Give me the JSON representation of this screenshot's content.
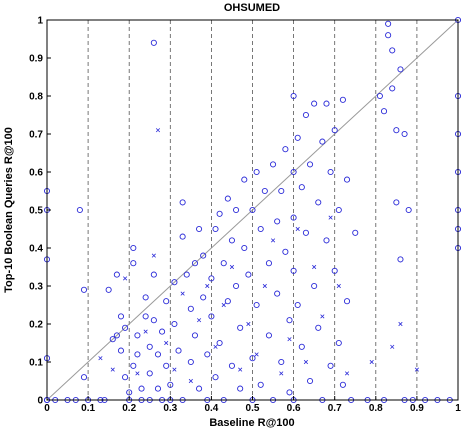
{
  "chart_data": {
    "type": "scatter",
    "title": "OHSUMED",
    "xlabel": "Baseline R@100",
    "ylabel": "Top-10 Boolean Queries R@100",
    "xlim": [
      0,
      1
    ],
    "ylim": [
      0,
      1
    ],
    "x_ticks": [
      "0",
      "0.1",
      "0.2",
      "0.3",
      "0.4",
      "0.5",
      "0.6",
      "0.7",
      "0.8",
      "0.9",
      "1"
    ],
    "y_ticks": [
      "0",
      "0.1",
      "0.2",
      "0.3",
      "0.4",
      "0.5",
      "0.6",
      "0.7",
      "0.8",
      "0.9",
      "1"
    ],
    "vertical_dashed_lines_at": [
      0.1,
      0.2,
      0.3,
      0.4,
      0.5,
      0.6,
      0.7,
      0.8,
      0.9
    ],
    "reference_line": {
      "type": "diagonal",
      "from": [
        0,
        0
      ],
      "to": [
        1,
        1
      ]
    },
    "marker_color": "#2b2bd8",
    "axis_color": "#000000",
    "reference_line_color": "#9a9a9a",
    "series": [
      {
        "marker": "circle",
        "points": [
          [
            0.0,
            0.0
          ],
          [
            0.0,
            0.5
          ],
          [
            0.0,
            0.55
          ],
          [
            0.0,
            0.37
          ],
          [
            0.0,
            0.11
          ],
          [
            0.0,
            0.0
          ],
          [
            0.02,
            0.0
          ],
          [
            0.05,
            0.0
          ],
          [
            0.07,
            0.0
          ],
          [
            0.08,
            0.5
          ],
          [
            0.09,
            0.06
          ],
          [
            0.09,
            0.29
          ],
          [
            0.1,
            0.0
          ],
          [
            0.13,
            0.0
          ],
          [
            0.14,
            0.0
          ],
          [
            0.15,
            0.29
          ],
          [
            0.16,
            0.16
          ],
          [
            0.17,
            0.17
          ],
          [
            0.17,
            0.33
          ],
          [
            0.18,
            0.22
          ],
          [
            0.18,
            0.13
          ],
          [
            0.19,
            0.19
          ],
          [
            0.19,
            0.06
          ],
          [
            0.2,
            0.02
          ],
          [
            0.2,
            0.0
          ],
          [
            0.21,
            0.4
          ],
          [
            0.21,
            0.36
          ],
          [
            0.21,
            0.09
          ],
          [
            0.22,
            0.17
          ],
          [
            0.22,
            0.12
          ],
          [
            0.23,
            0.0
          ],
          [
            0.23,
            0.03
          ],
          [
            0.24,
            0.22
          ],
          [
            0.24,
            0.27
          ],
          [
            0.25,
            0.07
          ],
          [
            0.25,
            0.14
          ],
          [
            0.25,
            0.0
          ],
          [
            0.26,
            0.94
          ],
          [
            0.26,
            0.33
          ],
          [
            0.26,
            0.21
          ],
          [
            0.27,
            0.12
          ],
          [
            0.27,
            0.03
          ],
          [
            0.28,
            0.0
          ],
          [
            0.28,
            0.18
          ],
          [
            0.29,
            0.26
          ],
          [
            0.29,
            0.09
          ],
          [
            0.3,
            0.04
          ],
          [
            0.3,
            0.0
          ],
          [
            0.31,
            0.31
          ],
          [
            0.31,
            0.2
          ],
          [
            0.32,
            0.13
          ],
          [
            0.33,
            0.52
          ],
          [
            0.33,
            0.43
          ],
          [
            0.33,
            0.0
          ],
          [
            0.34,
            0.33
          ],
          [
            0.35,
            0.24
          ],
          [
            0.35,
            0.1
          ],
          [
            0.36,
            0.17
          ],
          [
            0.36,
            0.36
          ],
          [
            0.37,
            0.45
          ],
          [
            0.37,
            0.03
          ],
          [
            0.38,
            0.27
          ],
          [
            0.38,
            0.38
          ],
          [
            0.39,
            0.0
          ],
          [
            0.39,
            0.12
          ],
          [
            0.4,
            0.32
          ],
          [
            0.4,
            0.22
          ],
          [
            0.41,
            0.45
          ],
          [
            0.41,
            0.06
          ],
          [
            0.42,
            0.49
          ],
          [
            0.42,
            0.15
          ],
          [
            0.43,
            0.36
          ],
          [
            0.43,
            0.0
          ],
          [
            0.44,
            0.53
          ],
          [
            0.44,
            0.26
          ],
          [
            0.45,
            0.42
          ],
          [
            0.45,
            0.09
          ],
          [
            0.46,
            0.5
          ],
          [
            0.46,
            0.3
          ],
          [
            0.47,
            0.19
          ],
          [
            0.47,
            0.03
          ],
          [
            0.48,
            0.4
          ],
          [
            0.48,
            0.58
          ],
          [
            0.49,
            0.33
          ],
          [
            0.5,
            0.5
          ],
          [
            0.5,
            0.11
          ],
          [
            0.5,
            0.0
          ],
          [
            0.51,
            0.6
          ],
          [
            0.51,
            0.25
          ],
          [
            0.52,
            0.45
          ],
          [
            0.52,
            0.04
          ],
          [
            0.53,
            0.55
          ],
          [
            0.54,
            0.36
          ],
          [
            0.54,
            0.17
          ],
          [
            0.55,
            0.62
          ],
          [
            0.55,
            0.0
          ],
          [
            0.56,
            0.47
          ],
          [
            0.56,
            0.28
          ],
          [
            0.57,
            0.55
          ],
          [
            0.57,
            0.1
          ],
          [
            0.58,
            0.66
          ],
          [
            0.58,
            0.39
          ],
          [
            0.59,
            0.21
          ],
          [
            0.59,
            0.02
          ],
          [
            0.6,
            0.8
          ],
          [
            0.6,
            0.6
          ],
          [
            0.6,
            0.48
          ],
          [
            0.6,
            0.34
          ],
          [
            0.6,
            0.0
          ],
          [
            0.61,
            0.25
          ],
          [
            0.61,
            0.69
          ],
          [
            0.62,
            0.56
          ],
          [
            0.62,
            0.14
          ],
          [
            0.63,
            0.75
          ],
          [
            0.63,
            0.44
          ],
          [
            0.64,
            0.05
          ],
          [
            0.64,
            0.62
          ],
          [
            0.65,
            0.3
          ],
          [
            0.65,
            0.78
          ],
          [
            0.66,
            0.52
          ],
          [
            0.66,
            0.19
          ],
          [
            0.67,
            0.68
          ],
          [
            0.67,
            0.0
          ],
          [
            0.68,
            0.42
          ],
          [
            0.68,
            0.78
          ],
          [
            0.69,
            0.09
          ],
          [
            0.69,
            0.6
          ],
          [
            0.7,
            0.34
          ],
          [
            0.7,
            0.71
          ],
          [
            0.71,
            0.15
          ],
          [
            0.71,
            0.5
          ],
          [
            0.72,
            0.79
          ],
          [
            0.72,
            0.04
          ],
          [
            0.73,
            0.58
          ],
          [
            0.73,
            0.26
          ],
          [
            0.74,
            0.0
          ],
          [
            0.75,
            0.44
          ],
          [
            0.78,
            0.0
          ],
          [
            0.81,
            0.8
          ],
          [
            0.82,
            0.0
          ],
          [
            0.82,
            0.76
          ],
          [
            0.83,
            0.99
          ],
          [
            0.83,
            0.96
          ],
          [
            0.84,
            0.92
          ],
          [
            0.84,
            0.82
          ],
          [
            0.85,
            0.71
          ],
          [
            0.85,
            0.52
          ],
          [
            0.86,
            0.37
          ],
          [
            0.86,
            0.87
          ],
          [
            0.87,
            0.0
          ],
          [
            0.87,
            0.7
          ],
          [
            0.88,
            0.5
          ],
          [
            0.89,
            0.0
          ],
          [
            0.92,
            0.0
          ],
          [
            0.95,
            0.0
          ],
          [
            0.98,
            0.0
          ],
          [
            1.0,
            0.8
          ],
          [
            1.0,
            0.7
          ],
          [
            1.0,
            0.6
          ],
          [
            1.0,
            0.45
          ],
          [
            1.0,
            0.4
          ],
          [
            1.0,
            0.5
          ],
          [
            1.0,
            1.0
          ]
        ]
      },
      {
        "marker": "x",
        "points": [
          [
            0.13,
            0.11
          ],
          [
            0.16,
            0.08
          ],
          [
            0.19,
            0.32
          ],
          [
            0.22,
            0.07
          ],
          [
            0.24,
            0.18
          ],
          [
            0.26,
            0.38
          ],
          [
            0.27,
            0.71
          ],
          [
            0.29,
            0.15
          ],
          [
            0.31,
            0.08
          ],
          [
            0.33,
            0.28
          ],
          [
            0.35,
            0.05
          ],
          [
            0.37,
            0.21
          ],
          [
            0.39,
            0.3
          ],
          [
            0.41,
            0.14
          ],
          [
            0.43,
            0.25
          ],
          [
            0.45,
            0.35
          ],
          [
            0.47,
            0.08
          ],
          [
            0.49,
            0.2
          ],
          [
            0.51,
            0.12
          ],
          [
            0.53,
            0.3
          ],
          [
            0.55,
            0.42
          ],
          [
            0.57,
            0.07
          ],
          [
            0.59,
            0.16
          ],
          [
            0.61,
            0.45
          ],
          [
            0.63,
            0.1
          ],
          [
            0.65,
            0.35
          ],
          [
            0.67,
            0.22
          ],
          [
            0.69,
            0.48
          ],
          [
            0.71,
            0.3
          ],
          [
            0.73,
            0.07
          ],
          [
            0.79,
            0.1
          ],
          [
            0.84,
            0.14
          ],
          [
            0.86,
            0.2
          ],
          [
            0.9,
            0.08
          ]
        ]
      }
    ]
  }
}
